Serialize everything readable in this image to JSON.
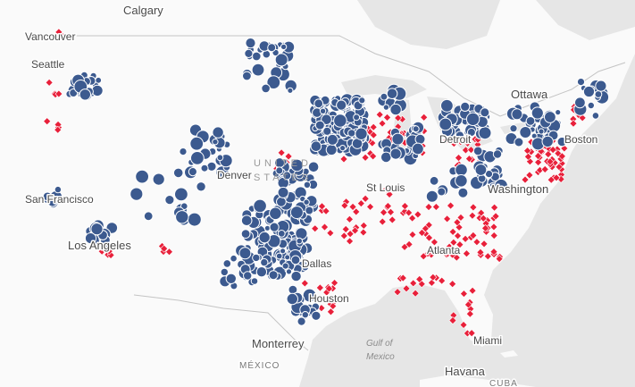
{
  "map": {
    "labels": {
      "calgary": "Calgary",
      "vancouver": "Vancouver",
      "seattle": "Seattle",
      "ottawa": "Ottawa",
      "boston": "Boston",
      "detroit": "Detroit",
      "st_louis": "St Louis",
      "washington": "Washington",
      "denver": "Denver",
      "san_francisco": "San Francisco",
      "los_angeles": "Los Angeles",
      "dallas": "Dallas",
      "atlanta": "Atlanta",
      "houston": "Houston",
      "miami": "Miami",
      "monterrey": "Monterrey",
      "mexico": "MÉXICO",
      "havana": "Havana",
      "cuba": "CUBA",
      "gulf_line1": "Gulf of",
      "gulf_line2": "Mexico",
      "united_states_line1": "UNITED",
      "united_states_line2": "STATES"
    },
    "colors": {
      "water": "#e6e6e6",
      "land": "#fafafa",
      "border": "#c4c4c4",
      "circle_fill": "#3c5a8f",
      "circle_stroke": "#ffffff",
      "diamond_fill": "#e8203a"
    },
    "marker_types": [
      "circle",
      "diamond"
    ]
  }
}
